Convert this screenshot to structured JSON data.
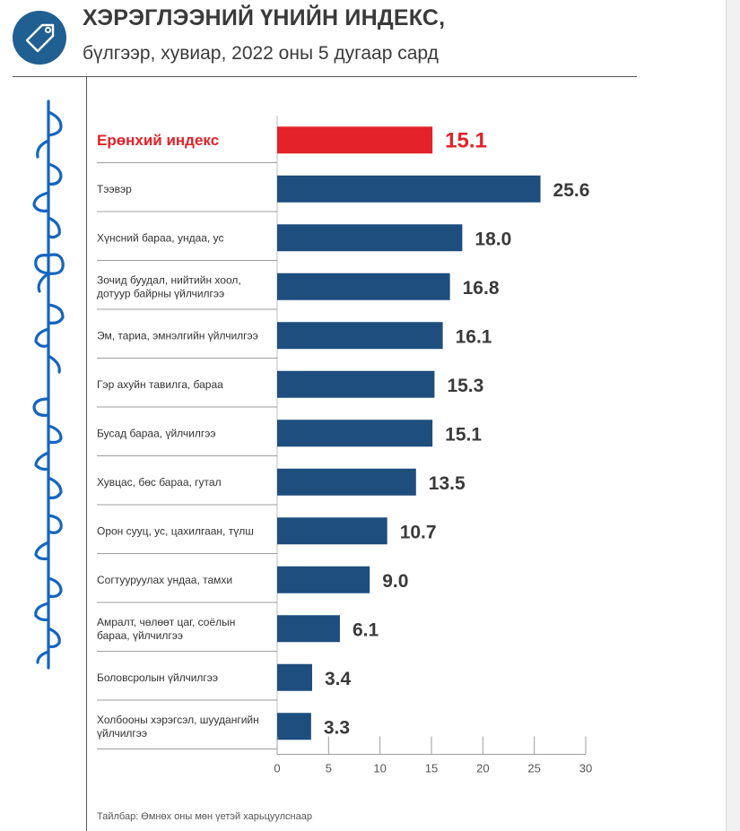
{
  "header": {
    "title": "ХЭРЭГЛЭЭНИЙ ҮНИЙН ИНДЕКС,",
    "subtitle": "бүлгээр, хувиар, 2022 оны 5 дугаар сард",
    "icon": "price-tag-icon"
  },
  "side_text": "Mongolian script vertical text",
  "footnote": "Тайлбар: Өмнөх оны мөн үетэй харьцуулснаар",
  "colors": {
    "highlight": "#e32229",
    "bar": "#1d4e7e",
    "logo": "#1f5f92",
    "side_script": "#1565c0",
    "text": "#3a3a3a"
  },
  "chart_data": {
    "type": "bar",
    "orientation": "horizontal",
    "categories": [
      "Ерөнхий индекс",
      "Тээвэр",
      "Хүнсний бараа, ундаа, ус",
      "Зочид буудал, нийтийн хоол,\nдотуур байрны үйлчилгээ",
      "Эм, тариа, эмнэлгийн үйлчилгээ",
      "Гэр ахуйн тавилга, бараа",
      "Бусад бараа, үйлчилгээ",
      "Хувцас, бөс бараа, гутал",
      "Орон сууц, ус, цахилгаан, түлш",
      "Согтууруулах ундаа, тамхи",
      "Амралт, чөлөөт цаг, соёлын\nбараа, үйлчилгээ",
      "Боловсролын үйлчилгээ",
      "Холбооны хэрэгсэл, шуудангийн\nүйлчилгээ"
    ],
    "values": [
      15.1,
      25.6,
      18.0,
      16.8,
      16.1,
      15.3,
      15.1,
      13.5,
      10.7,
      9.0,
      6.1,
      3.4,
      3.3
    ],
    "value_labels": [
      "15.1",
      "25.6",
      "18.0",
      "16.8",
      "16.1",
      "15.3",
      "15.1",
      "13.5",
      "10.7",
      "9.0",
      "6.1",
      "3.4",
      "3.3"
    ],
    "highlight_index": 0,
    "xlim": [
      0,
      30
    ],
    "xticks": [
      0,
      5,
      10,
      15,
      20,
      25,
      30
    ],
    "xtick_labels": [
      "0",
      "5",
      "10",
      "15",
      "20",
      "25",
      "30"
    ],
    "title": "ХЭРЭГЛЭЭНИЙ ҮНИЙН ИНДЕКС,",
    "subtitle": "бүлгээр, хувиар, 2022 оны 5 дугаар сард",
    "grid": false,
    "legend": "none"
  }
}
